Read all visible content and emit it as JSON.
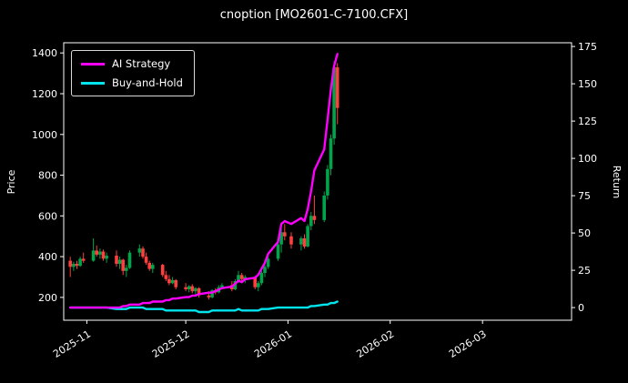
{
  "title": "cnoption [MO2601-C-7100.CFX]",
  "legend": {
    "items": [
      {
        "label": "AI Strategy",
        "color": "#ff00ff"
      },
      {
        "label": "Buy-and-Hold",
        "color": "#00e5ee"
      }
    ]
  },
  "colors": {
    "background": "#000000",
    "text": "#ffffff",
    "axis": "#ffffff",
    "up": "#00a44a",
    "down": "#ff3e3e",
    "ai_strategy": "#ff00ff",
    "buy_and_hold": "#00e5ee"
  },
  "chart_data": {
    "type": "candlestick+line",
    "title": "cnoption [MO2601-C-7100.CFX]",
    "ylabel_left": "Price",
    "ylabel_right": "Return",
    "legend_position": "upper-left",
    "grid": false,
    "x_domain": [
      "2025-10-25",
      "2026-03-28"
    ],
    "x_ticks": [
      {
        "date": "2025-11-01",
        "label": "2025-11"
      },
      {
        "date": "2025-12-01",
        "label": "2025-12"
      },
      {
        "date": "2026-01-01",
        "label": "2026-01"
      },
      {
        "date": "2026-02-01",
        "label": "2026-02"
      },
      {
        "date": "2026-03-01",
        "label": "2026-03"
      }
    ],
    "price_axis": {
      "min": 88,
      "max": 1450,
      "ticks": [
        200,
        400,
        600,
        800,
        1000,
        1200,
        1400
      ]
    },
    "return_axis": {
      "min": -8.5,
      "max": 177.5,
      "ticks": [
        0,
        25,
        50,
        75,
        100,
        125,
        150,
        175
      ]
    },
    "candles_format": [
      "date",
      "open",
      "high",
      "low",
      "close"
    ],
    "candles": [
      [
        "2025-10-27",
        380,
        400,
        300,
        350
      ],
      [
        "2025-10-28",
        350,
        375,
        330,
        365
      ],
      [
        "2025-10-29",
        365,
        380,
        340,
        355
      ],
      [
        "2025-10-30",
        355,
        400,
        350,
        390
      ],
      [
        "2025-10-31",
        390,
        420,
        370,
        380
      ],
      [
        "2025-11-03",
        380,
        490,
        375,
        430
      ],
      [
        "2025-11-04",
        430,
        455,
        400,
        410
      ],
      [
        "2025-11-05",
        410,
        440,
        390,
        425
      ],
      [
        "2025-11-06",
        425,
        435,
        380,
        390
      ],
      [
        "2025-11-07",
        390,
        420,
        370,
        405
      ],
      [
        "2025-11-10",
        405,
        430,
        350,
        365
      ],
      [
        "2025-11-11",
        365,
        400,
        340,
        385
      ],
      [
        "2025-11-12",
        385,
        390,
        310,
        330
      ],
      [
        "2025-11-13",
        330,
        360,
        300,
        345
      ],
      [
        "2025-11-14",
        345,
        430,
        340,
        420
      ],
      [
        "2025-11-17",
        420,
        460,
        400,
        440
      ],
      [
        "2025-11-18",
        440,
        450,
        390,
        400
      ],
      [
        "2025-11-19",
        400,
        420,
        360,
        370
      ],
      [
        "2025-11-20",
        370,
        380,
        330,
        340
      ],
      [
        "2025-11-21",
        340,
        370,
        320,
        360
      ],
      [
        "2025-11-24",
        360,
        365,
        300,
        310
      ],
      [
        "2025-11-25",
        310,
        330,
        280,
        290
      ],
      [
        "2025-11-26",
        290,
        310,
        260,
        270
      ],
      [
        "2025-11-27",
        270,
        300,
        265,
        285
      ],
      [
        "2025-11-28",
        285,
        290,
        240,
        250
      ],
      [
        "2025-12-01",
        250,
        270,
        230,
        240
      ],
      [
        "2025-12-02",
        240,
        260,
        225,
        255
      ],
      [
        "2025-12-03",
        255,
        265,
        220,
        230
      ],
      [
        "2025-12-04",
        230,
        250,
        210,
        245
      ],
      [
        "2025-12-05",
        245,
        250,
        200,
        210
      ],
      [
        "2025-12-08",
        210,
        230,
        190,
        200
      ],
      [
        "2025-12-09",
        200,
        240,
        195,
        235
      ],
      [
        "2025-12-10",
        235,
        245,
        215,
        225
      ],
      [
        "2025-12-11",
        225,
        260,
        220,
        250
      ],
      [
        "2025-12-12",
        250,
        270,
        240,
        260
      ],
      [
        "2025-12-15",
        260,
        280,
        230,
        240
      ],
      [
        "2025-12-16",
        240,
        290,
        235,
        280
      ],
      [
        "2025-12-17",
        280,
        330,
        270,
        310
      ],
      [
        "2025-12-18",
        310,
        320,
        280,
        290
      ],
      [
        "2025-12-19",
        290,
        310,
        270,
        300
      ],
      [
        "2025-12-22",
        300,
        305,
        240,
        250
      ],
      [
        "2025-12-23",
        250,
        280,
        230,
        270
      ],
      [
        "2025-12-24",
        270,
        330,
        260,
        320
      ],
      [
        "2025-12-25",
        320,
        360,
        300,
        350
      ],
      [
        "2025-12-26",
        350,
        400,
        340,
        390
      ],
      [
        "2025-12-29",
        390,
        480,
        380,
        460
      ],
      [
        "2025-12-30",
        460,
        540,
        420,
        520
      ],
      [
        "2025-12-31",
        520,
        560,
        480,
        500
      ],
      [
        "2026-01-02",
        500,
        520,
        440,
        460
      ],
      [
        "2026-01-05",
        460,
        500,
        430,
        490
      ],
      [
        "2026-01-06",
        490,
        510,
        440,
        450
      ],
      [
        "2026-01-07",
        450,
        560,
        445,
        550
      ],
      [
        "2026-01-08",
        550,
        620,
        530,
        600
      ],
      [
        "2026-01-09",
        600,
        700,
        560,
        580
      ],
      [
        "2026-01-12",
        580,
        720,
        570,
        700
      ],
      [
        "2026-01-13",
        700,
        850,
        680,
        830
      ],
      [
        "2026-01-14",
        830,
        1000,
        800,
        980
      ],
      [
        "2026-01-15",
        980,
        1360,
        950,
        1330
      ],
      [
        "2026-01-16",
        1330,
        1350,
        1050,
        1130
      ]
    ],
    "series": [
      {
        "name": "AI Strategy",
        "axis": "return",
        "color": "#ff00ff",
        "values": [
          0,
          0,
          0,
          0,
          0,
          0,
          0,
          0,
          0,
          0,
          0,
          0,
          1,
          1,
          2,
          2,
          3,
          3,
          3,
          4,
          4,
          5,
          5,
          6,
          6,
          7,
          7,
          8,
          8,
          9,
          10,
          10,
          11,
          12,
          13,
          14,
          16,
          18,
          17,
          19,
          20,
          22,
          26,
          30,
          36,
          44,
          56,
          58,
          56,
          60,
          58,
          66,
          78,
          92,
          106,
          126,
          146,
          162,
          170
        ]
      },
      {
        "name": "Buy-and-Hold",
        "axis": "return",
        "color": "#00e5ee",
        "values": [
          0,
          0,
          0,
          0,
          0,
          0,
          0,
          0,
          0,
          0,
          -1,
          -1,
          -1,
          -1,
          0,
          0,
          0,
          -1,
          -1,
          -1,
          -1,
          -2,
          -2,
          -2,
          -2,
          -2,
          -2,
          -2,
          -2,
          -3,
          -3,
          -2,
          -2,
          -2,
          -2,
          -2,
          -2,
          -1,
          -2,
          -2,
          -2,
          -2,
          -1,
          -1,
          -1,
          0,
          0,
          0,
          0,
          0,
          0,
          0,
          1,
          1,
          2,
          2,
          3,
          3,
          4
        ]
      }
    ]
  }
}
